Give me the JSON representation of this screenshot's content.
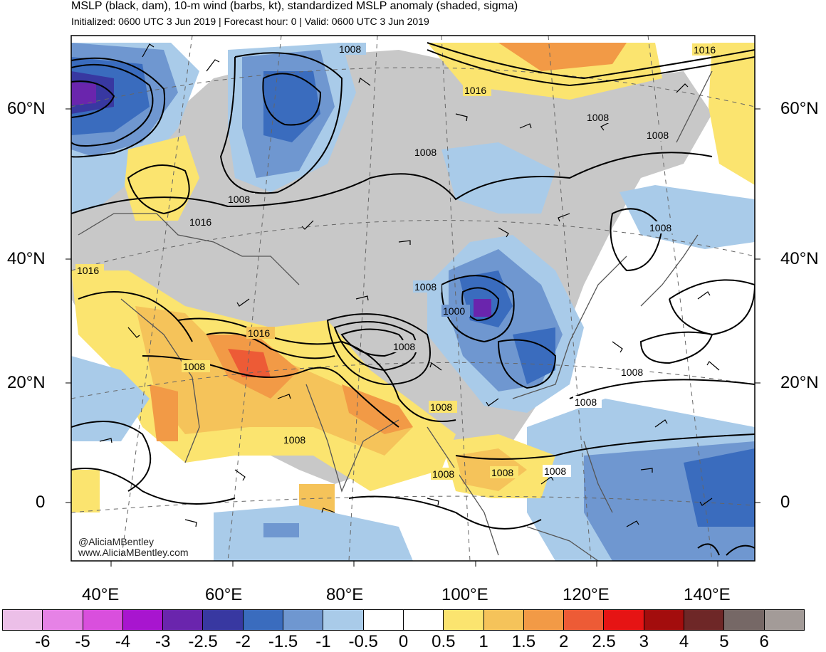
{
  "title": "MSLP (black, dam), 10-m wind (barbs, kt), standardized MSLP anomaly (shaded, sigma)",
  "subtitle": "Initialized: 0600 UTC 3 Jun 2019 | Forecast hour: 0 | Valid: 0600 UTC 3 Jun 2019",
  "latitude_labels": [
    "60°N",
    "40°N",
    "20°N",
    "0"
  ],
  "longitude_labels": [
    "40°E",
    "60°E",
    "80°E",
    "100°E",
    "120°E",
    "140°E"
  ],
  "isobar_labels": [
    "1008",
    "1016",
    "1016",
    "1008",
    "1008",
    "1008",
    "1008",
    "1016",
    "1016",
    "1008",
    "1008",
    "1008",
    "1000",
    "1016",
    "1008",
    "1008",
    "1008",
    "1008",
    "1008",
    "1008",
    "1008",
    "1008",
    "1008",
    "1008"
  ],
  "credit": [
    "@AliciaMBentley",
    "www.AliciaMBentley.com"
  ],
  "colorbar": {
    "labels": [
      "-6",
      "-5",
      "-4",
      "-3",
      "-2.5",
      "-2",
      "-1.5",
      "-1",
      "-0.5",
      "0",
      "0.5",
      "1",
      "1.5",
      "2",
      "2.5",
      "3",
      "4",
      "5",
      "6"
    ],
    "colors": [
      "#ecbfe8",
      "#e682e6",
      "#d94fdd",
      "#a815cf",
      "#6a25ad",
      "#3838a1",
      "#3a6cbe",
      "#6f97d0",
      "#a9cbe9",
      "#ffffff",
      "#ffffff",
      "#fbe46f",
      "#f5c35a",
      "#f29a46",
      "#ed5b36",
      "#e61414",
      "#a30d0d",
      "#6e2727",
      "#766866",
      "#a39b98"
    ]
  },
  "colors": {
    "neutral_anomaly": "#c8c8c8",
    "ocean": "#ffffff"
  }
}
